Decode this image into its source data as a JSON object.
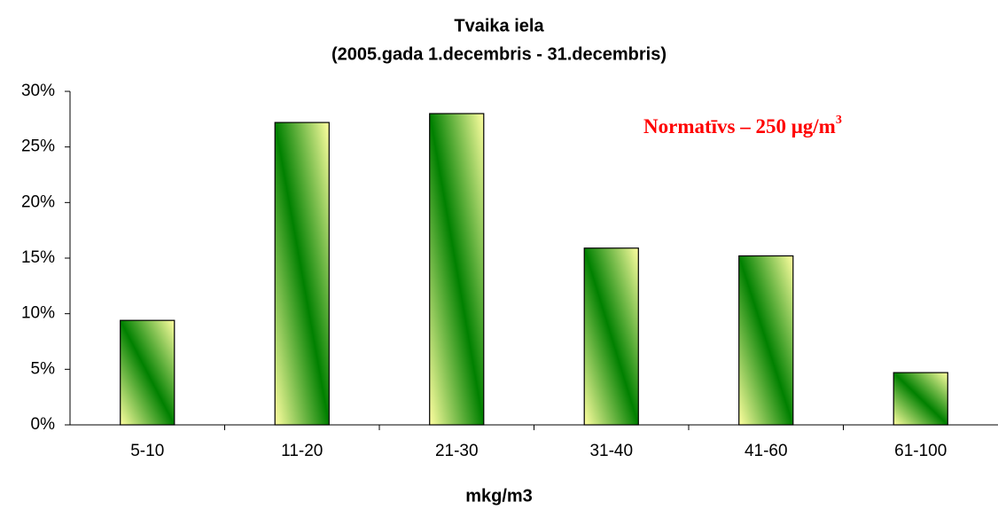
{
  "chart_data": {
    "type": "bar",
    "title": "Tvaika iela",
    "subtitle": "(2005.gada 1.decembris - 31.decembris)",
    "x_label": "mkg/m3",
    "annotation": {
      "text": "Normatīvs – 250 μg/m",
      "superscript": "3"
    },
    "categories": [
      "5-10",
      "11-20",
      "21-30",
      "31-40",
      "41-60",
      "61-100"
    ],
    "values": [
      9.4,
      27.2,
      28.0,
      15.9,
      15.2,
      4.7
    ],
    "color": "#008000",
    "gradient_colors": [
      "#ffffa0",
      "#008000"
    ],
    "ylim": [
      0,
      30
    ],
    "yticks": [
      {
        "value": 0,
        "label": "0%"
      },
      {
        "value": 5,
        "label": "5%"
      },
      {
        "value": 10,
        "label": "10%"
      },
      {
        "value": 15,
        "label": "15%"
      },
      {
        "value": 20,
        "label": "20%"
      },
      {
        "value": 25,
        "label": "25%"
      },
      {
        "value": 30,
        "label": "30%"
      }
    ],
    "grid": false
  }
}
